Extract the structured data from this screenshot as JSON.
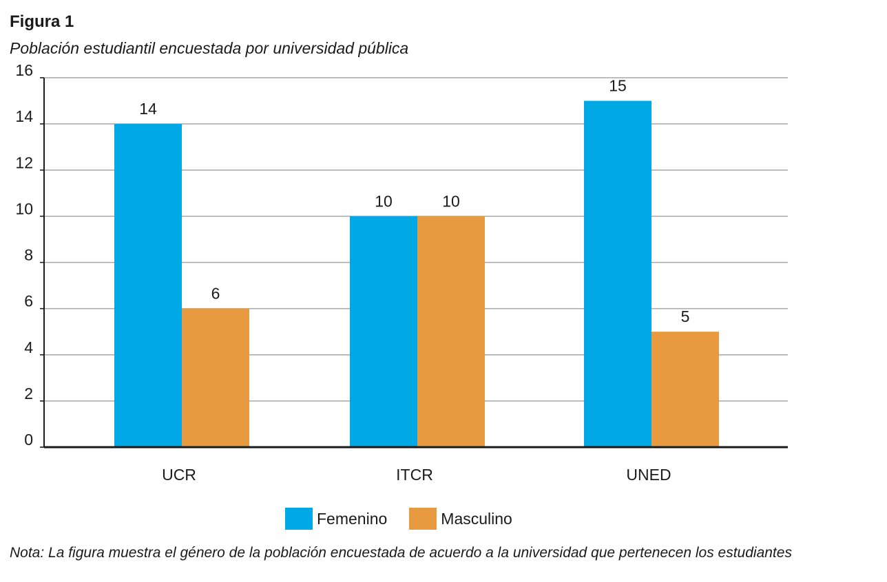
{
  "figure": {
    "label": "Figura 1",
    "title": "Población estudiantil encuestada por universidad pública",
    "note": "Nota: La figura muestra el género de la población encuestada de acuerdo a la universidad que pertenecen los estudiantes"
  },
  "chart_data": {
    "type": "bar",
    "categories": [
      "UCR",
      "ITCR",
      "UNED"
    ],
    "series": [
      {
        "name": "Femenino",
        "values": [
          14,
          10,
          15
        ],
        "color": "#00a8e6"
      },
      {
        "name": "Masculino",
        "values": [
          6,
          10,
          5
        ],
        "color": "#e89a40"
      }
    ],
    "title": "",
    "xlabel": "",
    "ylabel": "",
    "ylim": [
      0,
      16
    ],
    "yticks": [
      0,
      2,
      4,
      6,
      8,
      10,
      12,
      14,
      16
    ],
    "grid": true,
    "legend_position": "bottom"
  }
}
